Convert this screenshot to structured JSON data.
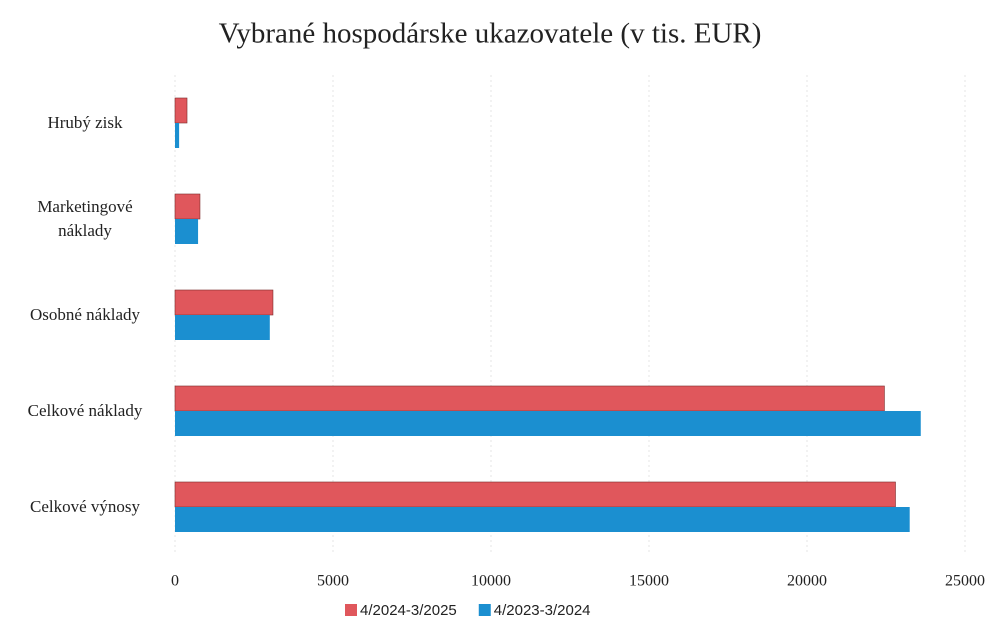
{
  "chart_data": {
    "type": "barh",
    "title": "Vybrané hospodárske ukazovatele (v tis. EUR)",
    "categories": [
      "Hrubý zisk",
      "Marketingové náklady",
      "Osobné náklady",
      "Celkové náklady",
      "Celkové výnosy"
    ],
    "series": [
      {
        "name": "4/2024-3/2025",
        "color": "#e0575c",
        "values": [
          380,
          790,
          3100,
          22450,
          22800
        ]
      },
      {
        "name": "4/2023-3/2024",
        "color": "#1b8fd0",
        "values": [
          130,
          730,
          3000,
          23600,
          23250
        ]
      }
    ],
    "xlim": [
      0,
      25000
    ],
    "xticks": [
      0,
      5000,
      10000,
      15000,
      20000,
      25000
    ],
    "grid": true,
    "legend": "bottom"
  }
}
